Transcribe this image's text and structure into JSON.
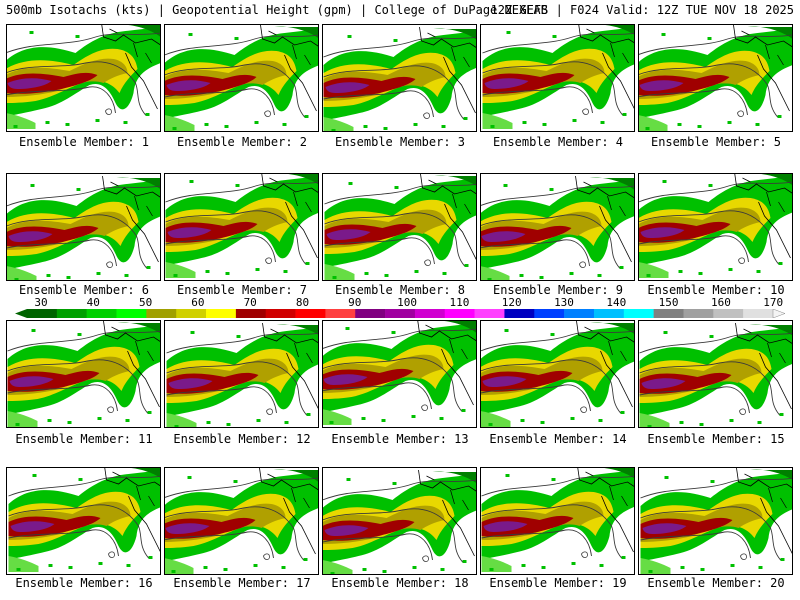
{
  "header": {
    "left": "500mb Isotachs (kts) | Geopotential Height (gpm) | College of DuPage NEXLAB",
    "right": "12Z GEFS | F024 Valid: 12Z TUE NOV 18 2025"
  },
  "panels": [
    {
      "label": "Ensemble Member: 1"
    },
    {
      "label": "Ensemble Member: 2"
    },
    {
      "label": "Ensemble Member: 3"
    },
    {
      "label": "Ensemble Member: 4"
    },
    {
      "label": "Ensemble Member: 5"
    },
    {
      "label": "Ensemble Member: 6"
    },
    {
      "label": "Ensemble Member: 7"
    },
    {
      "label": "Ensemble Member: 8"
    },
    {
      "label": "Ensemble Member: 9"
    },
    {
      "label": "Ensemble Member: 10"
    },
    {
      "label": "Ensemble Member: 11"
    },
    {
      "label": "Ensemble Member: 12"
    },
    {
      "label": "Ensemble Member: 13"
    },
    {
      "label": "Ensemble Member: 14"
    },
    {
      "label": "Ensemble Member: 15"
    },
    {
      "label": "Ensemble Member: 16"
    },
    {
      "label": "Ensemble Member: 17"
    },
    {
      "label": "Ensemble Member: 18"
    },
    {
      "label": "Ensemble Member: 19"
    },
    {
      "label": "Ensemble Member: 20"
    }
  ],
  "colorbar": {
    "ticks": [
      "30",
      "40",
      "50",
      "60",
      "70",
      "80",
      "90",
      "100",
      "110",
      "120",
      "130",
      "140",
      "150",
      "160",
      "170"
    ],
    "colors": [
      "#006400",
      "#00a000",
      "#00d000",
      "#00ff00",
      "#a0a000",
      "#d0d000",
      "#ffff00",
      "#a00000",
      "#d00000",
      "#ff0000",
      "#ff4040",
      "#800080",
      "#a000a0",
      "#d000d0",
      "#ff00ff",
      "#ff40ff",
      "#0000c0",
      "#0040ff",
      "#0080ff",
      "#00c0ff",
      "#00ffff",
      "#808080",
      "#a0a0a0",
      "#c0c0c0",
      "#e0e0e0"
    ]
  },
  "colors": {
    "green_dark": "#008000",
    "green": "#00c000",
    "green_light": "#66dd44",
    "olive": "#b0a000",
    "yellow": "#e8d800",
    "dark_red": "#a00000",
    "purple": "#7a1a8a",
    "border": "#000000",
    "height_contour": "#3a3a3a"
  }
}
